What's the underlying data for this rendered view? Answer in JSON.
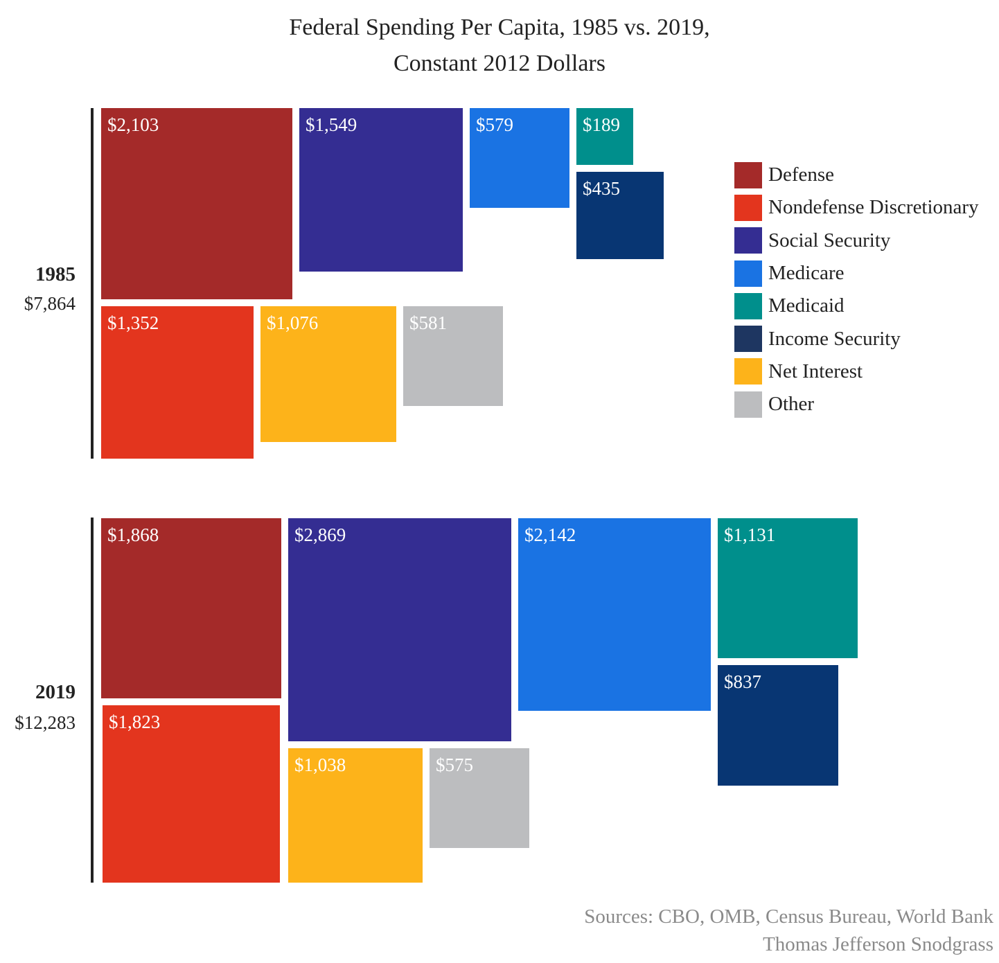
{
  "chart_data": {
    "type": "treemap",
    "title": "Federal Spending Per Capita, 1985 vs. 2019,",
    "subtitle": "Constant 2012 Dollars",
    "legend_position": "right",
    "categories": [
      "Defense",
      "Nondefense Discretionary",
      "Social Security",
      "Medicare",
      "Medicaid",
      "Income Security",
      "Net Interest",
      "Other"
    ],
    "colors": {
      "Defense": "#a42a29",
      "Nondefense Discretionary": "#e3351e",
      "Social Security": "#342d92",
      "Medicare": "#1a73e3",
      "Medicaid": "#008f8c",
      "Income Security": "#083673",
      "Net Interest": "#fdb31a",
      "Other": "#bcbdbf"
    },
    "legend_colors": {
      "Income Security": "#1e3661"
    },
    "groups": [
      {
        "year": "1985",
        "total_label": "$7,864",
        "total": 7864,
        "items": [
          {
            "category": "Defense",
            "value": 2103,
            "label": "$2,103"
          },
          {
            "category": "Social Security",
            "value": 1549,
            "label": "$1,549"
          },
          {
            "category": "Medicare",
            "value": 579,
            "label": "$579"
          },
          {
            "category": "Medicaid",
            "value": 189,
            "label": "$189"
          },
          {
            "category": "Income Security",
            "value": 435,
            "label": "$435"
          },
          {
            "category": "Nondefense Discretionary",
            "value": 1352,
            "label": "$1,352"
          },
          {
            "category": "Net Interest",
            "value": 1076,
            "label": "$1,076"
          },
          {
            "category": "Other",
            "value": 581,
            "label": "$581"
          }
        ]
      },
      {
        "year": "2019",
        "total_label": "$12,283",
        "total": 12283,
        "items": [
          {
            "category": "Defense",
            "value": 1868,
            "label": "$1,868"
          },
          {
            "category": "Social Security",
            "value": 2869,
            "label": "$2,869"
          },
          {
            "category": "Medicare",
            "value": 2142,
            "label": "$2,142"
          },
          {
            "category": "Medicaid",
            "value": 1131,
            "label": "$1,131"
          },
          {
            "category": "Income Security",
            "value": 837,
            "label": "$837"
          },
          {
            "category": "Nondefense Discretionary",
            "value": 1823,
            "label": "$1,823"
          },
          {
            "category": "Net Interest",
            "value": 1038,
            "label": "$1,038"
          },
          {
            "category": "Other",
            "value": 575,
            "label": "$575"
          }
        ]
      }
    ]
  },
  "footer": {
    "sources": "Sources: CBO, OMB, Census Bureau, World Bank",
    "author": "Thomas Jefferson Snodgrass"
  }
}
